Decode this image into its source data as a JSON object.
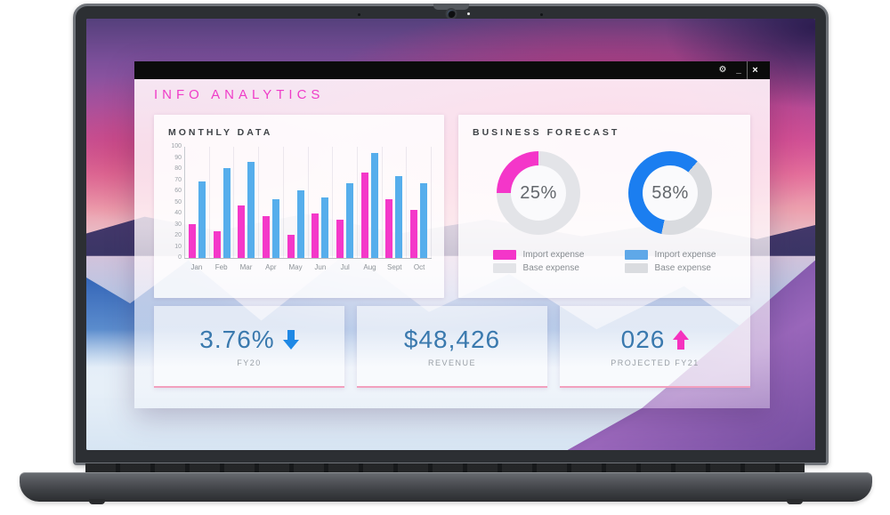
{
  "window": {
    "title": "INFO ANALYTICS",
    "controls": [
      {
        "name": "settings",
        "glyph": "⚙"
      },
      {
        "name": "minimize",
        "glyph": "_"
      },
      {
        "name": "close",
        "glyph": "×"
      }
    ]
  },
  "monthly_card": {
    "title": "MONTHLY DATA"
  },
  "forecast_card": {
    "title": "BUSINESS FORECAST",
    "donuts": [
      {
        "value_label": "25%",
        "legend": [
          {
            "label": "Import expense"
          },
          {
            "label": "Base expense"
          }
        ]
      },
      {
        "value_label": "58%",
        "legend": [
          {
            "label": "Import expense"
          },
          {
            "label": "Base expense"
          }
        ]
      }
    ]
  },
  "kpi_cards": [
    {
      "value": "3.76%",
      "trend": "down",
      "label": "FY20"
    },
    {
      "value": "$48,426",
      "trend": "none",
      "label": "REVENUE"
    },
    {
      "value": "026",
      "trend": "up",
      "label": "PROJECTED FY21"
    }
  ],
  "palette": {
    "accent_pink": "#f232c8",
    "bar_blue": "#56aeec",
    "donut_blue": "#1b7ef0",
    "kpi_text_blue": "#3a79ae",
    "arrow_down_blue": "#1e88e5",
    "arrow_up_pink": "#f532be",
    "titlebar_black": "#0b0b0b"
  },
  "chart_data": [
    {
      "type": "bar",
      "title": "MONTHLY DATA",
      "categories": [
        "Jan",
        "Feb",
        "Mar",
        "Apr",
        "May",
        "Jun",
        "Jul",
        "Aug",
        "Sept",
        "Oct"
      ],
      "series": [
        {
          "name": "pink",
          "color": "#f438c9",
          "values": [
            30,
            24,
            47,
            37,
            21,
            40,
            34,
            76,
            52,
            43
          ]
        },
        {
          "name": "blue",
          "color": "#56aeec",
          "values": [
            68,
            80,
            86,
            52,
            60,
            54,
            67,
            94,
            73,
            67
          ]
        }
      ],
      "xlabel": "",
      "ylabel": "",
      "ylim": [
        0,
        100
      ],
      "yticks": [
        0,
        10,
        20,
        30,
        40,
        50,
        60,
        70,
        80,
        90,
        100
      ],
      "grid": "vertical-light",
      "legend": "none"
    },
    {
      "type": "pie",
      "title": "BUSINESS FORECAST",
      "donuts": [
        {
          "value": 25,
          "value_label": "25%",
          "color": "#f436c9",
          "track_color": "#e3e4e8",
          "start_deg": 270,
          "legend": [
            {
              "label": "Import expense",
              "color": "#f436c9"
            },
            {
              "label": "Base expense",
              "color": "#e3e4e8"
            }
          ]
        },
        {
          "value": 58,
          "value_label": "58%",
          "color": "#1b7ef0",
          "track_color": "#d9dbdf",
          "start_deg": 192,
          "legend": [
            {
              "label": "Import expense",
              "color": "#5fa8e8"
            },
            {
              "label": "Base expense",
              "color": "#dadce0"
            }
          ]
        }
      ],
      "legend_position": "below"
    }
  ]
}
